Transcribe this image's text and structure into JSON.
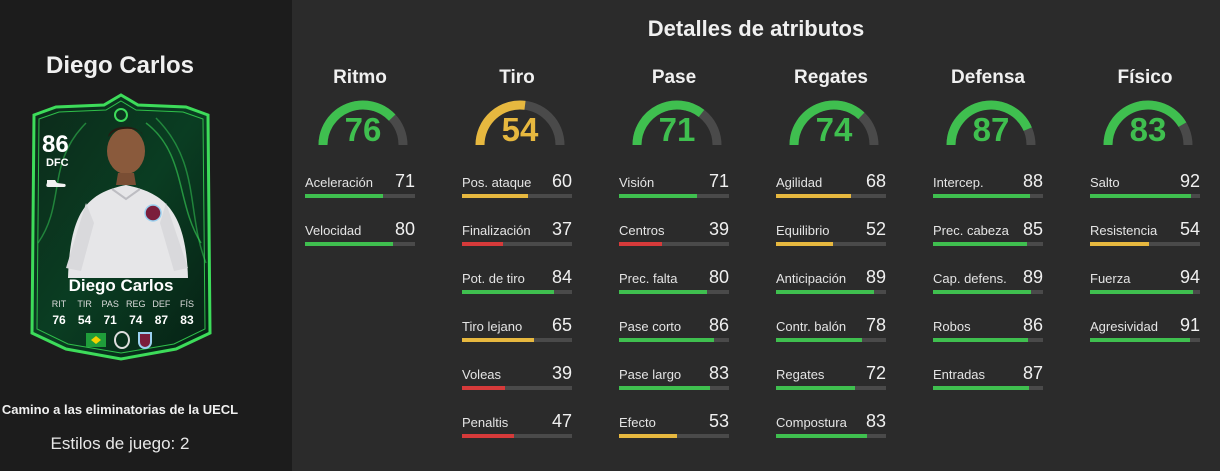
{
  "colors": {
    "green": "#3fbf4f",
    "yellow": "#e7b83f",
    "red": "#d63a3a",
    "gauge_track": "#4a4a4a"
  },
  "player": {
    "name": "Diego Carlos",
    "card_name": "Diego Carlos",
    "rating": "86",
    "position": "DFC",
    "stat_labels": [
      "RIT",
      "TIR",
      "PAS",
      "REG",
      "DEF",
      "FÍS"
    ],
    "stat_values": [
      "76",
      "54",
      "71",
      "74",
      "87",
      "83"
    ],
    "promo": "Camino a las eliminatorias de la UECL",
    "playstyles": "Estilos de juego: 2"
  },
  "panel_title": "Detalles de atributos",
  "categories": [
    {
      "label": "Ritmo",
      "value": 76,
      "attributes": [
        {
          "name": "Aceleración",
          "value": 71
        },
        {
          "name": "Velocidad",
          "value": 80
        }
      ]
    },
    {
      "label": "Tiro",
      "value": 54,
      "attributes": [
        {
          "name": "Pos. ataque",
          "value": 60
        },
        {
          "name": "Finalización",
          "value": 37
        },
        {
          "name": "Pot. de tiro",
          "value": 84
        },
        {
          "name": "Tiro lejano",
          "value": 65
        },
        {
          "name": "Voleas",
          "value": 39
        },
        {
          "name": "Penaltis",
          "value": 47
        }
      ]
    },
    {
      "label": "Pase",
      "value": 71,
      "attributes": [
        {
          "name": "Visión",
          "value": 71
        },
        {
          "name": "Centros",
          "value": 39
        },
        {
          "name": "Prec. falta",
          "value": 80
        },
        {
          "name": "Pase corto",
          "value": 86
        },
        {
          "name": "Pase largo",
          "value": 83
        },
        {
          "name": "Efecto",
          "value": 53
        }
      ]
    },
    {
      "label": "Regates",
      "value": 74,
      "attributes": [
        {
          "name": "Agilidad",
          "value": 68
        },
        {
          "name": "Equilibrio",
          "value": 52
        },
        {
          "name": "Anticipación",
          "value": 89
        },
        {
          "name": "Contr. balón",
          "value": 78
        },
        {
          "name": "Regates",
          "value": 72
        },
        {
          "name": "Compostura",
          "value": 83
        }
      ]
    },
    {
      "label": "Defensa",
      "value": 87,
      "attributes": [
        {
          "name": "Intercep.",
          "value": 88
        },
        {
          "name": "Prec. cabeza",
          "value": 85
        },
        {
          "name": "Cap. defens.",
          "value": 89
        },
        {
          "name": "Robos",
          "value": 86
        },
        {
          "name": "Entradas",
          "value": 87
        }
      ]
    },
    {
      "label": "Físico",
      "value": 83,
      "attributes": [
        {
          "name": "Salto",
          "value": 92
        },
        {
          "name": "Resistencia",
          "value": 54
        },
        {
          "name": "Fuerza",
          "value": 94
        },
        {
          "name": "Agresividad",
          "value": 91
        }
      ]
    }
  ]
}
